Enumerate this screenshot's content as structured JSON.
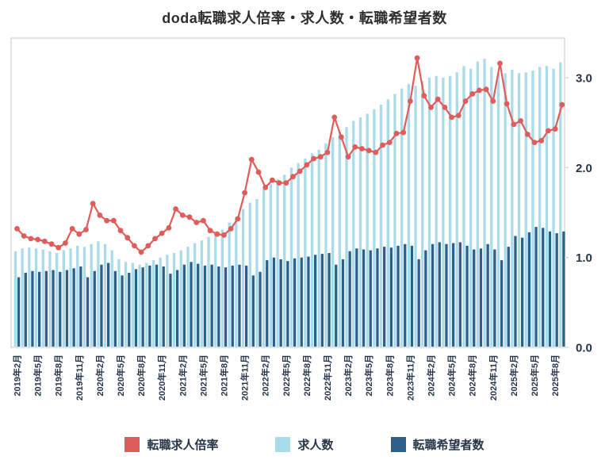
{
  "title": "doda転職求人倍率・求人数・転職希望者数",
  "colors": {
    "rate_red": "#e05c5a",
    "jobs_light_blue": "#a9dcea",
    "seekers_dark_blue": "#2d5f8b",
    "plot_border": "#d9d9d9",
    "axis_text": "#26354a",
    "plot_background": "#ffffff"
  },
  "legend": [
    {
      "label": "転職求人倍率",
      "color": "#e05c5a"
    },
    {
      "label": "求人数",
      "color": "#a9dcea"
    },
    {
      "label": "転職希望者数",
      "color": "#2d5f8b"
    }
  ],
  "y_axis": {
    "tick_labels": [
      "0.0",
      "1.0",
      "2.0",
      "3.0"
    ],
    "tick_values": [
      0,
      1,
      2,
      3
    ],
    "max": 3.45,
    "side": "right"
  },
  "x_axis": {
    "label_every_n_months": 3,
    "visible_tick_labels": [
      "2019年2月",
      "2019年5月",
      "2019年8月",
      "2019年11月",
      "2020年2月",
      "2020年5月",
      "2020年8月",
      "2020年11月",
      "2021年2月",
      "2021年5月",
      "2021年8月",
      "2021年11月",
      "2022年2月",
      "2022年5月",
      "2022年8月",
      "2022年11月",
      "2023年2月",
      "2023年5月",
      "2023年8月",
      "2023年11月",
      "2024年2月",
      "2024年5月",
      "2024年8月",
      "2024年11月",
      "2025年2月",
      "2025年5月",
      "2025年8月"
    ]
  },
  "chart_data": {
    "type": "combo-bar-line",
    "grid": false,
    "legend_position": "bottom",
    "title": "doda転職求人倍率・求人数・転職希望者数",
    "ylim": [
      0,
      3.45
    ],
    "categories": [
      "2019年2月",
      "2019年3月",
      "2019年4月",
      "2019年5月",
      "2019年6月",
      "2019年7月",
      "2019年8月",
      "2019年9月",
      "2019年10月",
      "2019年11月",
      "2019年12月",
      "2020年1月",
      "2020年2月",
      "2020年3月",
      "2020年4月",
      "2020年5月",
      "2020年6月",
      "2020年7月",
      "2020年8月",
      "2020年9月",
      "2020年10月",
      "2020年11月",
      "2020年12月",
      "2021年1月",
      "2021年2月",
      "2021年3月",
      "2021年4月",
      "2021年5月",
      "2021年6月",
      "2021年7月",
      "2021年8月",
      "2021年9月",
      "2021年10月",
      "2021年11月",
      "2021年12月",
      "2022年1月",
      "2022年2月",
      "2022年3月",
      "2022年4月",
      "2022年5月",
      "2022年6月",
      "2022年7月",
      "2022年8月",
      "2022年9月",
      "2022年10月",
      "2022年11月",
      "2022年12月",
      "2023年1月",
      "2023年2月",
      "2023年3月",
      "2023年4月",
      "2023年5月",
      "2023年6月",
      "2023年7月",
      "2023年8月",
      "2023年9月",
      "2023年10月",
      "2023年11月",
      "2023年12月",
      "2024年1月",
      "2024年2月",
      "2024年3月",
      "2024年4月",
      "2024年5月",
      "2024年6月",
      "2024年7月",
      "2024年8月",
      "2024年9月",
      "2024年10月",
      "2024年11月",
      "2024年12月",
      "2025年1月",
      "2025年2月",
      "2025年3月",
      "2025年4月",
      "2025年5月",
      "2025年6月",
      "2025年7月",
      "2025年8月",
      "2025年9月"
    ],
    "series": [
      {
        "name": "転職求人倍率",
        "type": "line",
        "color": "#e05c5a",
        "values": [
          1.32,
          1.24,
          1.21,
          1.2,
          1.18,
          1.15,
          1.11,
          1.16,
          1.32,
          1.26,
          1.31,
          1.6,
          1.47,
          1.41,
          1.41,
          1.3,
          1.22,
          1.13,
          1.06,
          1.13,
          1.21,
          1.27,
          1.33,
          1.54,
          1.47,
          1.45,
          1.39,
          1.41,
          1.3,
          1.26,
          1.25,
          1.32,
          1.43,
          1.72,
          2.09,
          1.95,
          1.78,
          1.86,
          1.83,
          1.83,
          1.9,
          1.96,
          2.03,
          2.1,
          2.12,
          2.17,
          2.56,
          2.34,
          2.12,
          2.23,
          2.21,
          2.19,
          2.17,
          2.25,
          2.28,
          2.38,
          2.39,
          2.74,
          3.22,
          2.8,
          2.67,
          2.76,
          2.67,
          2.56,
          2.58,
          2.74,
          2.82,
          2.86,
          2.87,
          2.74,
          3.16,
          2.71,
          2.48,
          2.52,
          2.37,
          2.28,
          2.3,
          2.41,
          2.43,
          2.7
        ]
      },
      {
        "name": "求人数",
        "type": "bar",
        "color": "#a9dcea",
        "values": [
          1.07,
          1.1,
          1.11,
          1.1,
          1.09,
          1.07,
          1.05,
          1.08,
          1.1,
          1.13,
          1.12,
          1.15,
          1.18,
          1.15,
          1.08,
          0.98,
          0.95,
          0.94,
          0.92,
          0.94,
          0.97,
          1.0,
          1.03,
          1.05,
          1.08,
          1.12,
          1.16,
          1.19,
          1.23,
          1.27,
          1.31,
          1.39,
          1.45,
          1.54,
          1.61,
          1.65,
          1.76,
          1.82,
          1.87,
          1.92,
          2.0,
          2.05,
          2.1,
          2.16,
          2.2,
          2.27,
          2.34,
          2.4,
          2.45,
          2.52,
          2.56,
          2.6,
          2.65,
          2.7,
          2.76,
          2.82,
          2.88,
          2.93,
          2.91,
          2.96,
          3.0,
          3.02,
          3.0,
          3.02,
          3.06,
          3.13,
          3.1,
          3.18,
          3.21,
          3.12,
          3.05,
          3.05,
          3.09,
          3.05,
          3.06,
          3.08,
          3.12,
          3.13,
          3.1,
          3.17
        ]
      },
      {
        "name": "転職希望者数",
        "type": "bar",
        "color": "#2d5f8b",
        "values": [
          0.78,
          0.83,
          0.85,
          0.84,
          0.85,
          0.86,
          0.84,
          0.86,
          0.88,
          0.9,
          0.78,
          0.85,
          0.92,
          0.94,
          0.85,
          0.8,
          0.83,
          0.87,
          0.89,
          0.91,
          0.92,
          0.9,
          0.82,
          0.86,
          0.92,
          0.95,
          0.93,
          0.91,
          0.92,
          0.9,
          0.89,
          0.91,
          0.92,
          0.91,
          0.8,
          0.84,
          0.97,
          1.0,
          0.98,
          0.96,
          0.99,
          1.0,
          1.01,
          1.03,
          1.04,
          1.05,
          0.92,
          0.98,
          1.07,
          1.1,
          1.09,
          1.08,
          1.1,
          1.12,
          1.11,
          1.13,
          1.15,
          1.13,
          0.98,
          1.08,
          1.15,
          1.17,
          1.15,
          1.16,
          1.17,
          1.13,
          1.09,
          1.1,
          1.15,
          1.09,
          0.97,
          1.12,
          1.24,
          1.22,
          1.28,
          1.34,
          1.33,
          1.29,
          1.27,
          1.29
        ]
      }
    ]
  }
}
